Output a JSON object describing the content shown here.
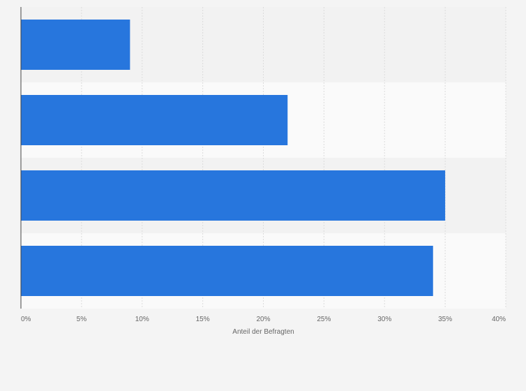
{
  "chart_data": {
    "type": "bar",
    "orientation": "horizontal",
    "categories": [
      "",
      "",
      "",
      ""
    ],
    "values": [
      9,
      22,
      35,
      34
    ],
    "title": "",
    "xlabel": "Anteil der Befragten",
    "ylabel": "",
    "xlim": [
      0,
      40
    ],
    "x_ticks": [
      "0%",
      "5%",
      "10%",
      "15%",
      "20%",
      "25%",
      "30%",
      "35%",
      "40%"
    ],
    "grid": true,
    "legend": "none"
  },
  "colors": {
    "bar": "#2776dd",
    "background": "#f4f4f4",
    "band_even": "#f2f2f2",
    "band_odd": "#fafafa",
    "gridline": "#dcdcdc",
    "axis": "#444444"
  }
}
